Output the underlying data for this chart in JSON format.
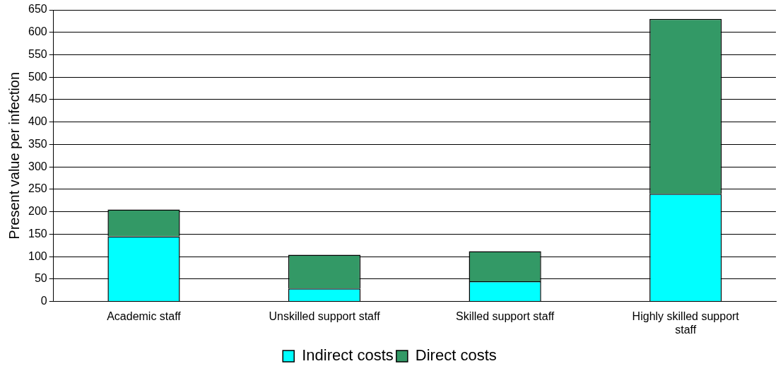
{
  "chart_data": {
    "type": "bar",
    "stacked": true,
    "ylabel": "Present value per infection",
    "categories": [
      "Academic staff",
      "Unskilled support staff",
      "Skilled support staff",
      "Highly skilled support staff"
    ],
    "series": [
      {
        "name": "Indirect costs",
        "color": "#00ffff",
        "values": [
          145,
          29,
          45,
          240
        ]
      },
      {
        "name": "Direct costs",
        "color": "#339966",
        "values": [
          60,
          75,
          67,
          390
        ]
      }
    ],
    "ylim": [
      0,
      650
    ],
    "yticks": [
      0,
      50,
      100,
      150,
      200,
      250,
      300,
      350,
      400,
      450,
      500,
      550,
      600,
      650
    ],
    "grid": "y",
    "legend": "bottom"
  }
}
